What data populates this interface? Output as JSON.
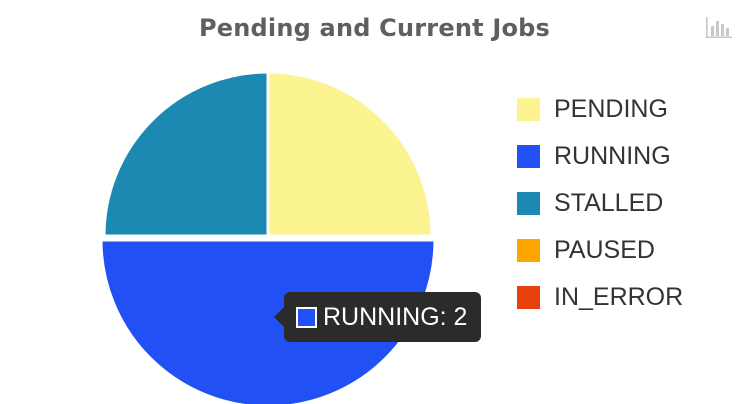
{
  "chart_data": {
    "type": "pie",
    "title": "Pending and Current Jobs",
    "categories": [
      "PENDING",
      "RUNNING",
      "STALLED",
      "PAUSED",
      "IN_ERROR"
    ],
    "values": [
      1,
      2,
      1,
      0,
      0
    ],
    "colors": [
      "#fbf491",
      "#2150f4",
      "#1c89b3",
      "#ffa500",
      "#e8410e"
    ],
    "legend_position": "right"
  },
  "toolbar": {
    "menu_icon": "bar-chart-icon"
  },
  "tooltip": {
    "text": "RUNNING: 2",
    "color": "#2150f4"
  }
}
